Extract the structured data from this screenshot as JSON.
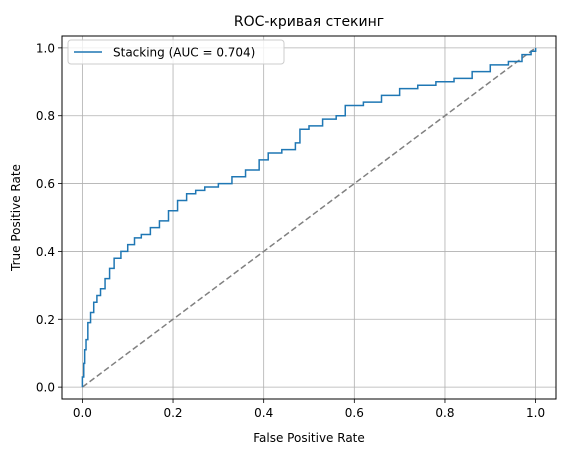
{
  "chart_data": {
    "type": "line",
    "title": "ROC-кривая стекинг",
    "xlabel": "False Positive Rate",
    "ylabel": "True Positive Rate",
    "xlim": [
      -0.045,
      1.045
    ],
    "ylim": [
      -0.035,
      1.035
    ],
    "xticks": [
      0.0,
      0.2,
      0.4,
      0.6,
      0.8,
      1.0
    ],
    "xtick_labels": [
      "0.0",
      "0.2",
      "0.4",
      "0.6",
      "0.8",
      "1.0"
    ],
    "yticks": [
      0.0,
      0.2,
      0.4,
      0.6,
      0.8,
      1.0
    ],
    "ytick_labels": [
      "0.0",
      "0.2",
      "0.4",
      "0.6",
      "0.8",
      "1.0"
    ],
    "grid": true,
    "legend_position": "upper-left",
    "series": [
      {
        "name": "Stacking (AUC = 0.704)",
        "color": "#1f77b4",
        "style": "solid",
        "x": [
          0.0,
          0.0,
          0.003,
          0.005,
          0.008,
          0.012,
          0.018,
          0.025,
          0.032,
          0.04,
          0.05,
          0.06,
          0.07,
          0.085,
          0.1,
          0.115,
          0.13,
          0.15,
          0.17,
          0.19,
          0.21,
          0.23,
          0.25,
          0.27,
          0.3,
          0.33,
          0.36,
          0.39,
          0.41,
          0.44,
          0.47,
          0.48,
          0.5,
          0.53,
          0.56,
          0.58,
          0.62,
          0.66,
          0.7,
          0.74,
          0.78,
          0.82,
          0.86,
          0.9,
          0.94,
          0.97,
          0.99,
          1.0
        ],
        "y": [
          0.0,
          0.03,
          0.07,
          0.11,
          0.14,
          0.19,
          0.22,
          0.25,
          0.27,
          0.29,
          0.32,
          0.35,
          0.38,
          0.4,
          0.42,
          0.44,
          0.45,
          0.47,
          0.49,
          0.52,
          0.55,
          0.57,
          0.58,
          0.59,
          0.6,
          0.62,
          0.64,
          0.67,
          0.69,
          0.7,
          0.72,
          0.76,
          0.77,
          0.79,
          0.8,
          0.83,
          0.84,
          0.86,
          0.88,
          0.89,
          0.9,
          0.91,
          0.93,
          0.95,
          0.96,
          0.98,
          0.99,
          1.0
        ]
      },
      {
        "name": "",
        "color": "#808080",
        "style": "dashed",
        "x": [
          0.0,
          1.0
        ],
        "y": [
          0.0,
          1.0
        ]
      }
    ]
  }
}
